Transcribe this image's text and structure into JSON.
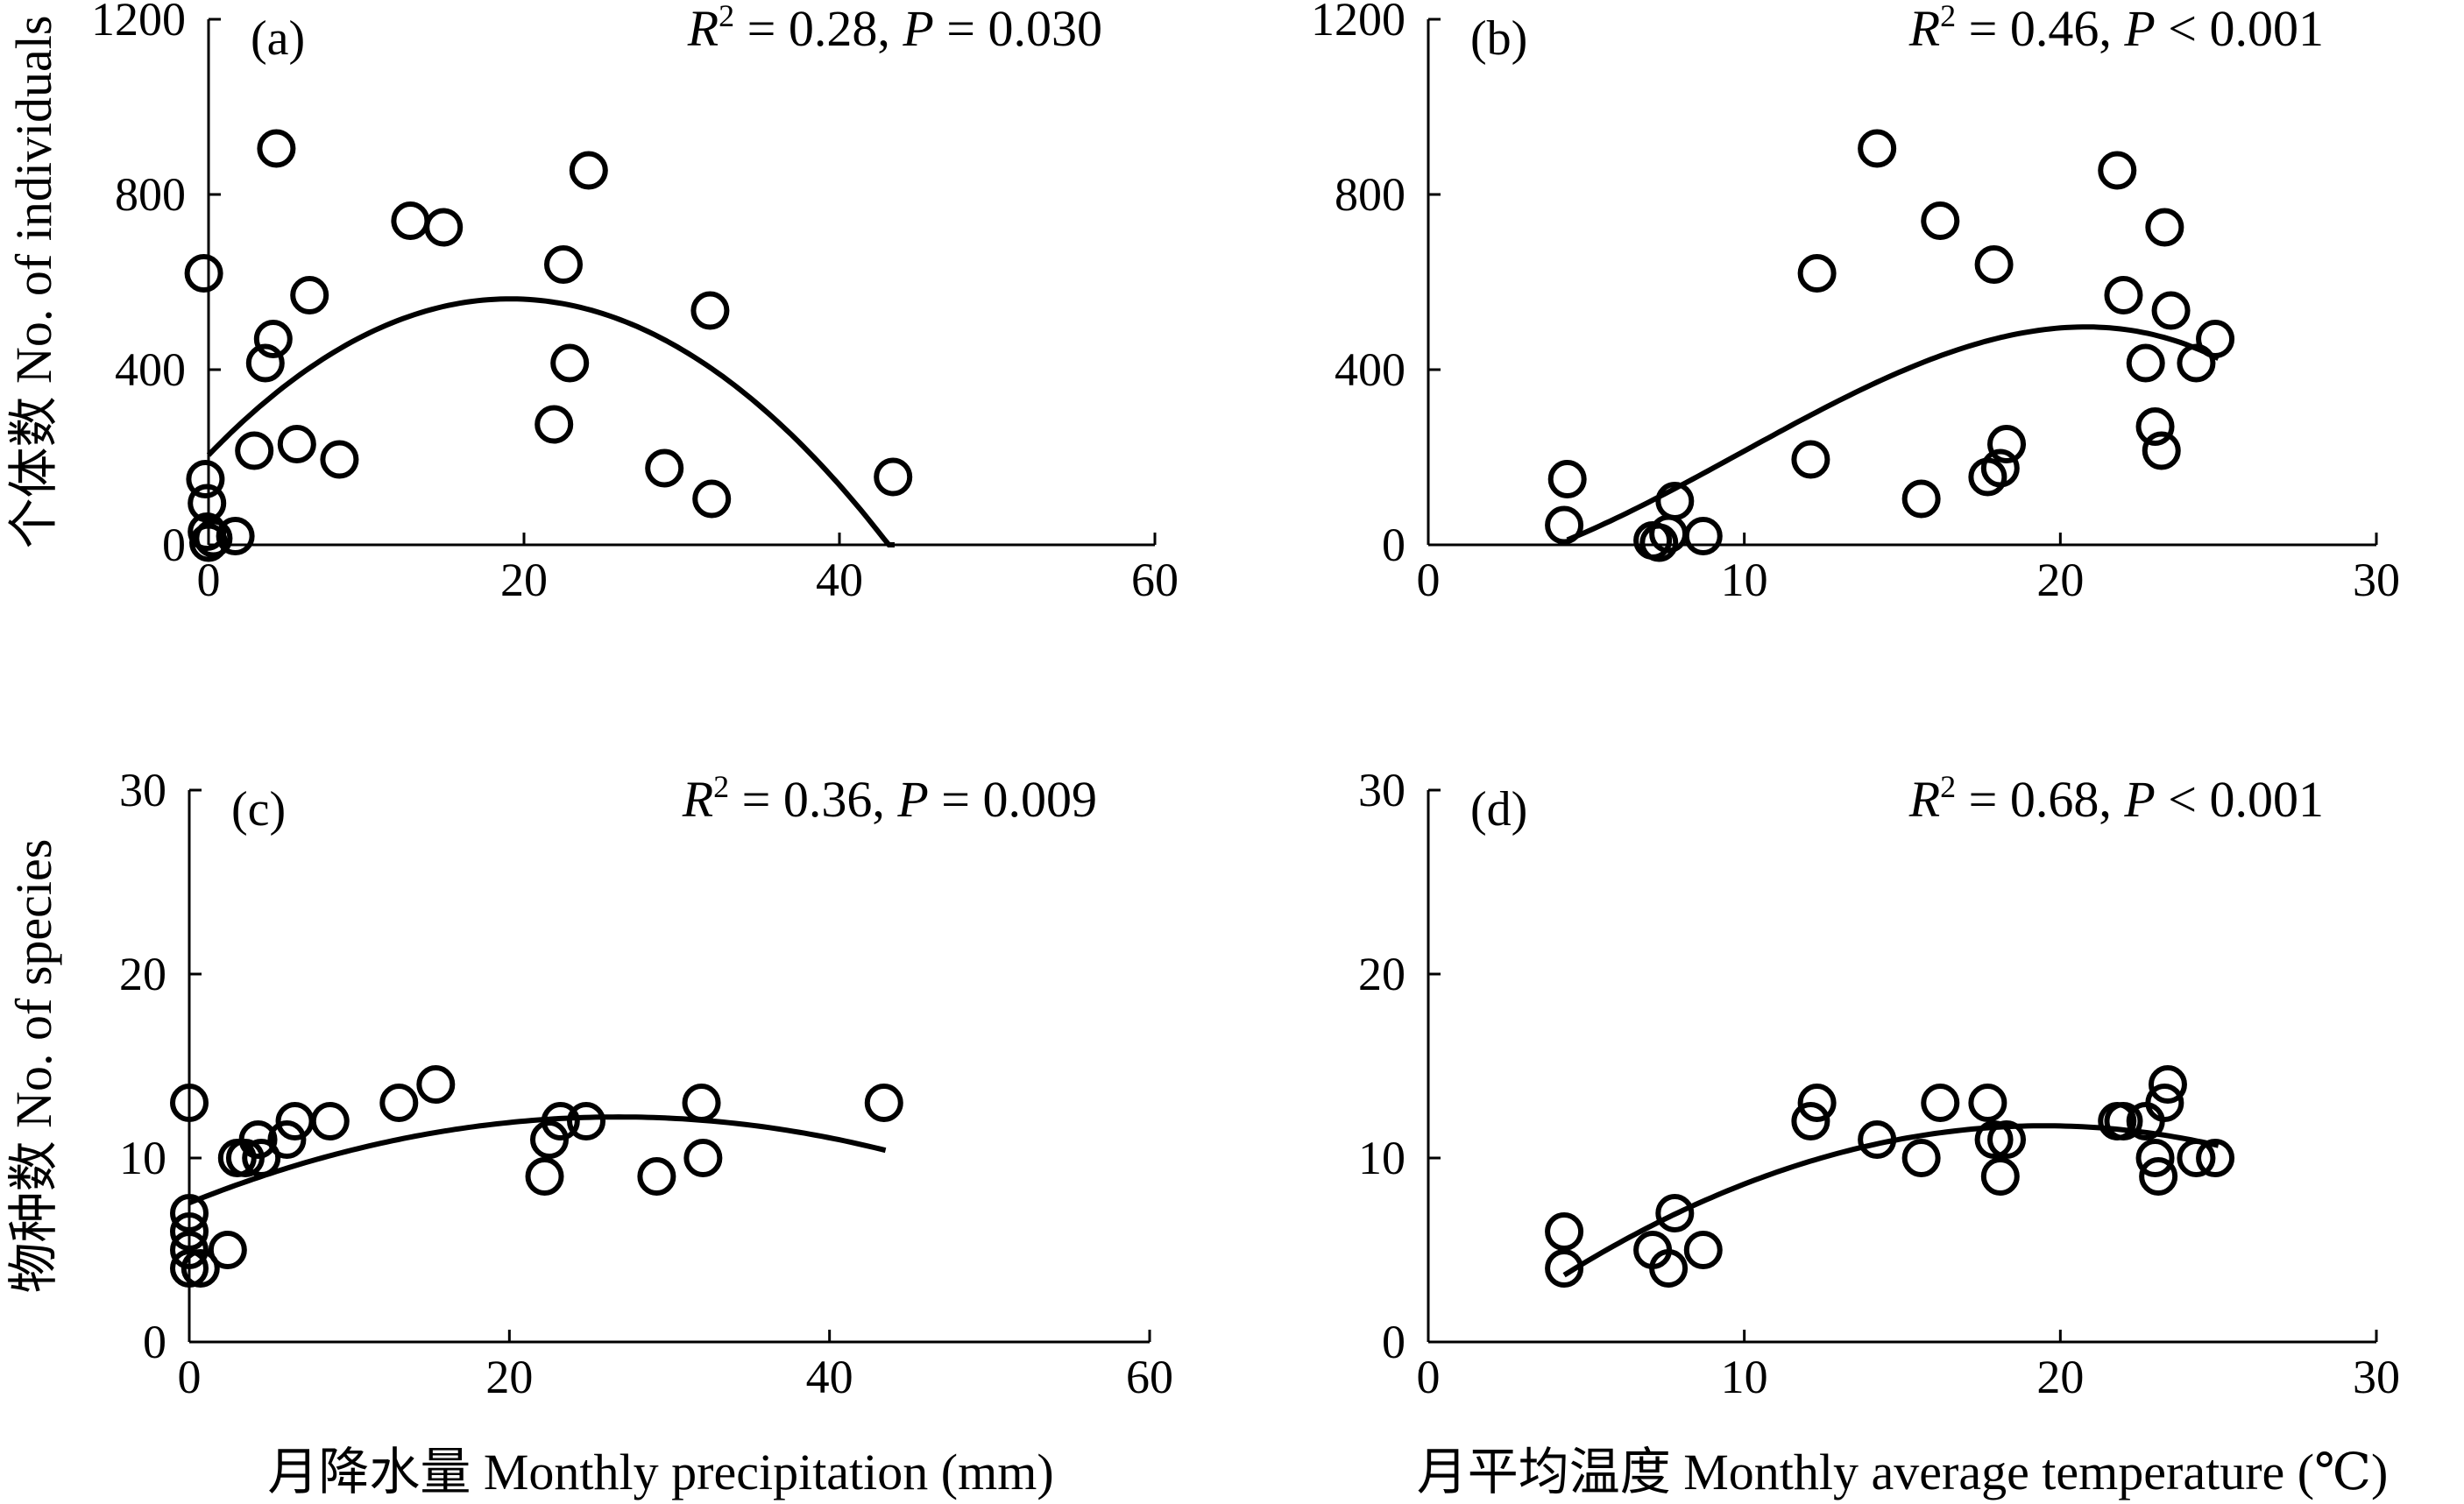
{
  "chart_data": [
    {
      "type": "scatter",
      "panel": "(a)",
      "stat": {
        "r_label": "R",
        "sup": "2",
        "r_text": " = 0.28, ",
        "p_label": "P",
        "p_text": " = 0.030"
      },
      "ylabel": "个体数 No. of individuals",
      "xlim": [
        0,
        60
      ],
      "ylim": [
        0,
        1200
      ],
      "xticks": [
        0,
        20,
        40,
        60
      ],
      "yticks": [
        0,
        400,
        800,
        1200
      ],
      "points": [
        {
          "x": -0.3,
          "y": 620
        },
        {
          "x": -0.2,
          "y": 150
        },
        {
          "x": -0.1,
          "y": 95
        },
        {
          "x": -0.1,
          "y": 30
        },
        {
          "x": 0.0,
          "y": 5
        },
        {
          "x": 0.3,
          "y": 15
        },
        {
          "x": 1.7,
          "y": 20
        },
        {
          "x": 2.9,
          "y": 215
        },
        {
          "x": 3.6,
          "y": 415
        },
        {
          "x": 4.1,
          "y": 470
        },
        {
          "x": 4.3,
          "y": 905
        },
        {
          "x": 5.6,
          "y": 230
        },
        {
          "x": 6.4,
          "y": 570
        },
        {
          "x": 8.3,
          "y": 195
        },
        {
          "x": 12.8,
          "y": 740
        },
        {
          "x": 14.9,
          "y": 725
        },
        {
          "x": 21.9,
          "y": 275
        },
        {
          "x": 22.5,
          "y": 640
        },
        {
          "x": 22.9,
          "y": 415
        },
        {
          "x": 24.1,
          "y": 855
        },
        {
          "x": 28.9,
          "y": 175
        },
        {
          "x": 31.8,
          "y": 535
        },
        {
          "x": 31.9,
          "y": 105
        },
        {
          "x": 43.4,
          "y": 155
        }
      ],
      "fit": {
        "kind": "quadratic",
        "x_range": [
          0,
          43.5
        ]
      }
    },
    {
      "type": "scatter",
      "panel": "(b)",
      "stat": {
        "r_label": "R",
        "sup": "2",
        "r_text": " = 0.46, ",
        "p_label": "P",
        "p_text": " < 0.001"
      },
      "ylabel": "",
      "xlim": [
        0,
        30
      ],
      "ylim": [
        0,
        1200
      ],
      "xticks": [
        0,
        10,
        20,
        30
      ],
      "yticks": [
        0,
        400,
        800,
        1200
      ],
      "points": [
        {
          "x": 4.3,
          "y": 45
        },
        {
          "x": 4.4,
          "y": 150
        },
        {
          "x": 7.1,
          "y": 10
        },
        {
          "x": 7.3,
          "y": 5
        },
        {
          "x": 7.6,
          "y": 25
        },
        {
          "x": 7.8,
          "y": 100
        },
        {
          "x": 8.7,
          "y": 20
        },
        {
          "x": 12.1,
          "y": 195
        },
        {
          "x": 12.3,
          "y": 620
        },
        {
          "x": 14.2,
          "y": 905
        },
        {
          "x": 15.6,
          "y": 105
        },
        {
          "x": 16.2,
          "y": 740
        },
        {
          "x": 17.7,
          "y": 155
        },
        {
          "x": 17.9,
          "y": 640
        },
        {
          "x": 18.1,
          "y": 175
        },
        {
          "x": 18.3,
          "y": 230
        },
        {
          "x": 21.8,
          "y": 855
        },
        {
          "x": 22.0,
          "y": 570
        },
        {
          "x": 22.7,
          "y": 415
        },
        {
          "x": 23.0,
          "y": 270
        },
        {
          "x": 23.2,
          "y": 215
        },
        {
          "x": 23.3,
          "y": 725
        },
        {
          "x": 23.5,
          "y": 535
        },
        {
          "x": 24.3,
          "y": 415
        },
        {
          "x": 24.9,
          "y": 470
        }
      ],
      "fit": {
        "kind": "cubic",
        "x_range": [
          4.4,
          25.0
        ]
      }
    },
    {
      "type": "scatter",
      "panel": "(c)",
      "stat": {
        "r_label": "R",
        "sup": "2",
        "r_text": " = 0.36, ",
        "p_label": "P",
        "p_text": " = 0.009"
      },
      "ylabel": "物种数 No. of species",
      "xlim": [
        0,
        60
      ],
      "ylim": [
        0,
        30
      ],
      "xticks": [
        0,
        20,
        40,
        60
      ],
      "yticks": [
        0,
        10,
        20,
        30
      ],
      "points": [
        {
          "x": 0.0,
          "y": 13
        },
        {
          "x": 0.0,
          "y": 7
        },
        {
          "x": 0.0,
          "y": 6
        },
        {
          "x": 0.0,
          "y": 5
        },
        {
          "x": 0.0,
          "y": 4
        },
        {
          "x": 0.7,
          "y": 4
        },
        {
          "x": 2.4,
          "y": 5
        },
        {
          "x": 3.0,
          "y": 10
        },
        {
          "x": 3.5,
          "y": 10
        },
        {
          "x": 4.3,
          "y": 11
        },
        {
          "x": 4.5,
          "y": 10
        },
        {
          "x": 6.1,
          "y": 11
        },
        {
          "x": 6.6,
          "y": 12
        },
        {
          "x": 8.8,
          "y": 12
        },
        {
          "x": 13.1,
          "y": 13
        },
        {
          "x": 15.4,
          "y": 14
        },
        {
          "x": 22.2,
          "y": 9
        },
        {
          "x": 22.5,
          "y": 11
        },
        {
          "x": 23.2,
          "y": 12
        },
        {
          "x": 24.8,
          "y": 12
        },
        {
          "x": 29.2,
          "y": 9
        },
        {
          "x": 32.0,
          "y": 13
        },
        {
          "x": 32.1,
          "y": 10
        },
        {
          "x": 43.4,
          "y": 13
        }
      ],
      "fit": {
        "kind": "quadratic",
        "x_range": [
          0,
          43.5
        ]
      }
    },
    {
      "type": "scatter",
      "panel": "(d)",
      "stat": {
        "r_label": "R",
        "sup": "2",
        "r_text": " = 0.68, ",
        "p_label": "P",
        "p_text": " < 0.001"
      },
      "ylabel": "",
      "xlim": [
        0,
        30
      ],
      "ylim": [
        0,
        30
      ],
      "xticks": [
        0,
        10,
        20,
        30
      ],
      "yticks": [
        0,
        10,
        20,
        30
      ],
      "points": [
        {
          "x": 4.3,
          "y": 6
        },
        {
          "x": 4.3,
          "y": 4
        },
        {
          "x": 7.1,
          "y": 5
        },
        {
          "x": 7.6,
          "y": 4
        },
        {
          "x": 7.8,
          "y": 7
        },
        {
          "x": 8.7,
          "y": 5
        },
        {
          "x": 12.1,
          "y": 12
        },
        {
          "x": 12.3,
          "y": 13
        },
        {
          "x": 14.2,
          "y": 11
        },
        {
          "x": 15.6,
          "y": 10
        },
        {
          "x": 16.2,
          "y": 13
        },
        {
          "x": 17.7,
          "y": 13
        },
        {
          "x": 17.9,
          "y": 11
        },
        {
          "x": 18.1,
          "y": 9
        },
        {
          "x": 18.3,
          "y": 11
        },
        {
          "x": 21.8,
          "y": 12
        },
        {
          "x": 22.0,
          "y": 12
        },
        {
          "x": 22.7,
          "y": 12
        },
        {
          "x": 23.0,
          "y": 10
        },
        {
          "x": 23.1,
          "y": 9
        },
        {
          "x": 23.3,
          "y": 13
        },
        {
          "x": 23.4,
          "y": 14
        },
        {
          "x": 24.3,
          "y": 10
        },
        {
          "x": 24.9,
          "y": 10
        }
      ],
      "fit": {
        "kind": "quadratic",
        "x_range": [
          4.3,
          25.0
        ]
      }
    }
  ],
  "x_axis_titles": {
    "left": "月降水量 Monthly precipitation (mm)",
    "right": "月平均温度 Monthly average temperature (℃)"
  }
}
